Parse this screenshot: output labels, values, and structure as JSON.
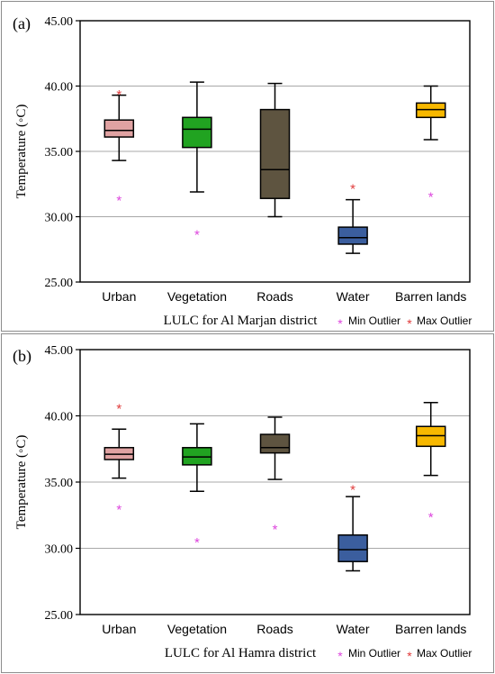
{
  "chart_data": [
    {
      "type": "box",
      "panel_label": "(a)",
      "xlabel": "LULC for Al Marjan district",
      "ylabel": "Temperature (◦C)",
      "ylim": [
        25.0,
        45.0
      ],
      "yticks": [
        "45.00",
        "40.00",
        "35.00",
        "30.00",
        "25.00"
      ],
      "grid": true,
      "legend": {
        "placement": "bottom-right",
        "entries": [
          "Min Outlier",
          "Max Outlier"
        ]
      },
      "categories": [
        "Urban",
        "Vegetation",
        "Roads",
        "Water",
        "Barren lands"
      ],
      "colors": [
        "#e0a2a2",
        "#21a321",
        "#5e5440",
        "#3b5e9e",
        "#f7b800"
      ],
      "outlier_colors": {
        "min": "#dd44dd",
        "max": "#e03a3a"
      },
      "boxes": [
        {
          "whisker_low": 34.3,
          "q1": 36.1,
          "median": 36.6,
          "q3": 37.4,
          "whisker_high": 39.3,
          "min_outlier": 31.3,
          "max_outlier": 39.4
        },
        {
          "whisker_low": 31.9,
          "q1": 35.3,
          "median": 36.7,
          "q3": 37.6,
          "whisker_high": 40.3,
          "min_outlier": 28.7,
          "max_outlier": null
        },
        {
          "whisker_low": 30.0,
          "q1": 31.4,
          "median": 33.6,
          "q3": 38.2,
          "whisker_high": 40.2,
          "min_outlier": null,
          "max_outlier": null
        },
        {
          "whisker_low": 27.2,
          "q1": 27.9,
          "median": 28.4,
          "q3": 29.2,
          "whisker_high": 31.3,
          "min_outlier": null,
          "max_outlier": 32.2
        },
        {
          "whisker_low": 35.9,
          "q1": 37.6,
          "median": 38.2,
          "q3": 38.7,
          "whisker_high": 40.0,
          "min_outlier": 31.6,
          "max_outlier": null
        }
      ]
    },
    {
      "type": "box",
      "panel_label": "(b)",
      "xlabel": "LULC for Al Hamra district",
      "ylabel": "Temperature (◦C)",
      "ylim": [
        25.0,
        45.0
      ],
      "yticks": [
        "45.00",
        "40.00",
        "35.00",
        "30.00",
        "25.00"
      ],
      "grid": true,
      "legend": {
        "placement": "bottom-right",
        "entries": [
          "Min Outlier",
          "Max Outlier"
        ]
      },
      "categories": [
        "Urban",
        "Vegetation",
        "Roads",
        "Water",
        "Barren lands"
      ],
      "colors": [
        "#e0a2a2",
        "#21a321",
        "#5e5440",
        "#3b5e9e",
        "#f7b800"
      ],
      "outlier_colors": {
        "min": "#dd44dd",
        "max": "#e03a3a"
      },
      "boxes": [
        {
          "whisker_low": 35.3,
          "q1": 36.7,
          "median": 37.1,
          "q3": 37.6,
          "whisker_high": 39.0,
          "min_outlier": 33.0,
          "max_outlier": 40.6
        },
        {
          "whisker_low": 34.3,
          "q1": 36.3,
          "median": 36.9,
          "q3": 37.6,
          "whisker_high": 39.4,
          "min_outlier": 30.5,
          "max_outlier": null
        },
        {
          "whisker_low": 35.2,
          "q1": 37.2,
          "median": 37.6,
          "q3": 38.6,
          "whisker_high": 39.9,
          "min_outlier": 31.5,
          "max_outlier": null
        },
        {
          "whisker_low": 28.3,
          "q1": 29.0,
          "median": 29.9,
          "q3": 31.0,
          "whisker_high": 33.9,
          "min_outlier": null,
          "max_outlier": 34.5
        },
        {
          "whisker_low": 35.5,
          "q1": 37.7,
          "median": 38.5,
          "q3": 39.2,
          "whisker_high": 41.0,
          "min_outlier": 32.4,
          "max_outlier": null
        }
      ]
    }
  ]
}
